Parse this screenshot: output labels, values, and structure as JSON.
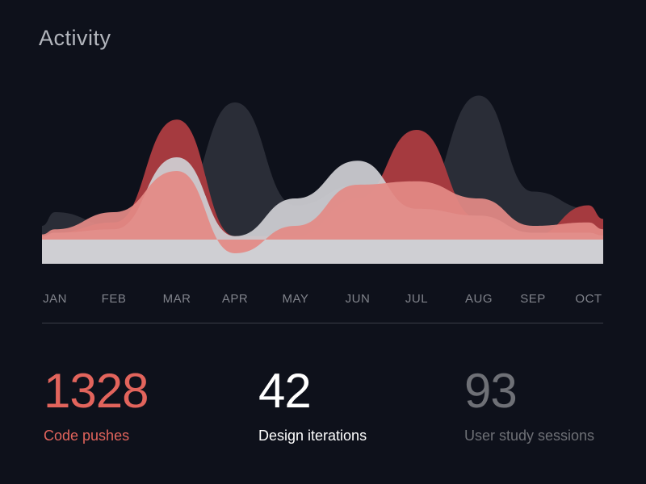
{
  "header": {
    "title": "Activity"
  },
  "colors": {
    "background": "#0e111b",
    "series_dark": "#2a2d37",
    "series_red": "#a53a3f",
    "series_light": "#cfcfd3",
    "series_pink": "#e38a85",
    "accent": "#e2645c"
  },
  "chart_data": {
    "type": "area",
    "x": [
      "JAN",
      "FEB",
      "MAR",
      "APR",
      "MAY",
      "JUN",
      "JUL",
      "AUG",
      "SEP",
      "OCT"
    ],
    "title": "",
    "xlabel": "",
    "ylabel": "",
    "grid": false,
    "series": [
      {
        "color": "#2a2d37",
        "opacity": 1.0,
        "values": [
          0.4,
          0.2,
          0.55,
          2.0,
          0.5,
          0.8,
          0.5,
          2.1,
          0.7,
          0.45
        ]
      },
      {
        "color": "#a53a3f",
        "opacity": 1.0,
        "values": [
          0.1,
          0.25,
          1.75,
          0.05,
          0.05,
          0.6,
          1.6,
          0.3,
          0.05,
          0.5
        ]
      },
      {
        "color": "#cfcfd3",
        "opacity": 0.93,
        "values": [
          0.1,
          0.15,
          1.2,
          0.05,
          0.6,
          1.15,
          0.45,
          0.35,
          0.1,
          0.1
        ]
      },
      {
        "color": "#e38a85",
        "opacity": 0.93,
        "values": [
          0.15,
          0.4,
          1.0,
          -0.2,
          0.2,
          0.8,
          0.85,
          0.6,
          0.2,
          0.25
        ]
      }
    ]
  },
  "stats": [
    {
      "value": "1328",
      "label": "Code pushes"
    },
    {
      "value": "42",
      "label": "Design iterations"
    },
    {
      "value": "93",
      "label": "User study sessions"
    }
  ]
}
